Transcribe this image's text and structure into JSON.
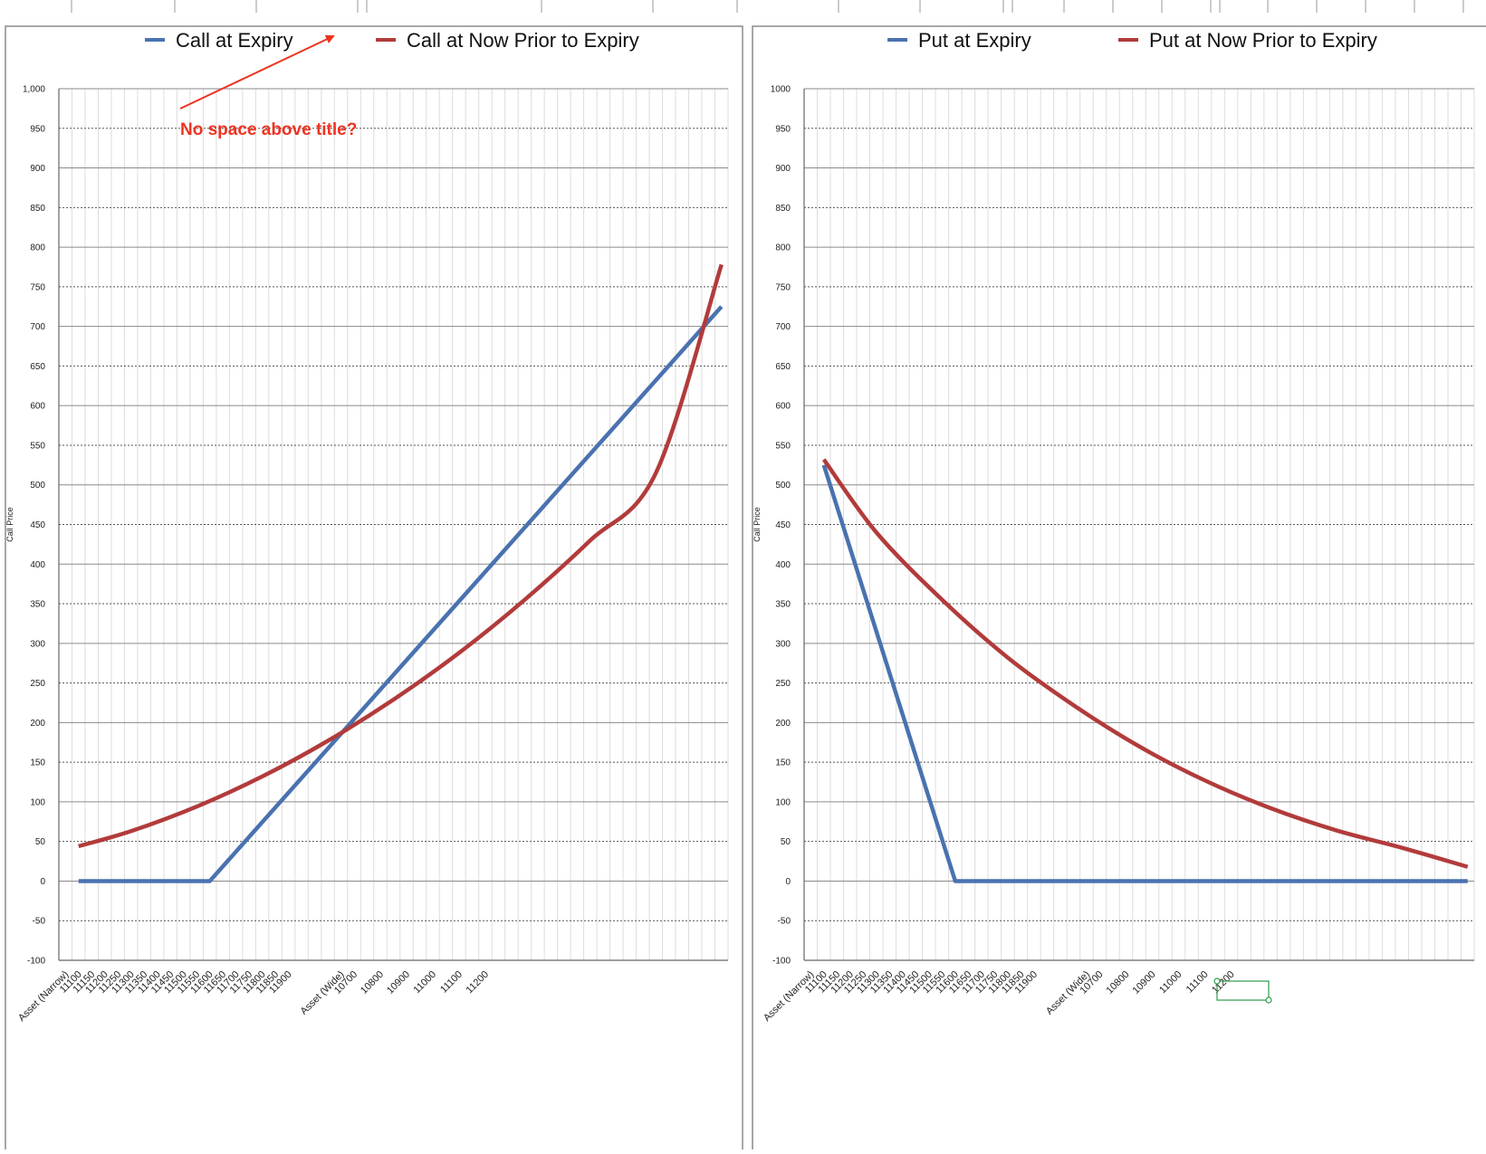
{
  "colors": {
    "series_expiry": "#4a72b0",
    "series_now": "#b23b3b",
    "annotation": "#ee3322",
    "selection": "#2e9a4a",
    "grid_major": "#8a8a8a",
    "grid_minor": "#dddddd",
    "frame": "#8a8a8a"
  },
  "annotation": {
    "text": "No space above title?",
    "shape": "arrow"
  },
  "chart_data": [
    {
      "type": "line",
      "legend_placement": "top",
      "ylabel": "Call Price",
      "ylim": [
        -100,
        1000
      ],
      "ytick_step": 50,
      "ytick_labels": [
        "-100",
        "-50",
        "0",
        "50",
        "100",
        "150",
        "200",
        "250",
        "300",
        "350",
        "400",
        "450",
        "500",
        "550",
        "600",
        "650",
        "700",
        "750",
        "800",
        "850",
        "900",
        "950",
        "1,000"
      ],
      "category_count": 51,
      "category_labels": [
        {
          "index": 0,
          "label": "Asset (Narrow)"
        },
        {
          "index": 1,
          "label": "11100"
        },
        {
          "index": 2,
          "label": "11150"
        },
        {
          "index": 3,
          "label": "11200"
        },
        {
          "index": 4,
          "label": "11250"
        },
        {
          "index": 5,
          "label": "11300"
        },
        {
          "index": 6,
          "label": "11350"
        },
        {
          "index": 7,
          "label": "11400"
        },
        {
          "index": 8,
          "label": "11450"
        },
        {
          "index": 9,
          "label": "11500"
        },
        {
          "index": 10,
          "label": "11550"
        },
        {
          "index": 11,
          "label": "11600"
        },
        {
          "index": 12,
          "label": "11650"
        },
        {
          "index": 13,
          "label": "11700"
        },
        {
          "index": 14,
          "label": "11750"
        },
        {
          "index": 15,
          "label": "11800"
        },
        {
          "index": 16,
          "label": "11850"
        },
        {
          "index": 17,
          "label": "11900"
        },
        {
          "index": 21,
          "label": "Asset (Wide)"
        },
        {
          "index": 22,
          "label": "10700"
        },
        {
          "index": 24,
          "label": "10800"
        },
        {
          "index": 26,
          "label": "10900"
        },
        {
          "index": 28,
          "label": "11000"
        },
        {
          "index": 30,
          "label": "11100"
        },
        {
          "index": 32,
          "label": "11200"
        }
      ],
      "series": [
        {
          "name": "Call at Expiry",
          "color": "#4a72b0",
          "points": [
            [
              1,
              0
            ],
            [
              11,
              0
            ],
            [
              50,
              725
            ]
          ]
        },
        {
          "name": "Call at Now Prior to Expiry",
          "color": "#b23b3b",
          "points": [
            [
              1,
              44
            ],
            [
              5,
              63
            ],
            [
              10,
              94
            ],
            [
              15,
              132
            ],
            [
              20,
              177
            ],
            [
              25,
              229
            ],
            [
              30,
              288
            ],
            [
              35,
              355
            ],
            [
              40,
              430
            ],
            [
              45,
              515
            ],
            [
              50,
              778
            ]
          ]
        }
      ]
    },
    {
      "type": "line",
      "legend_placement": "top",
      "ylabel": "Call Price",
      "ylim": [
        -100,
        1000
      ],
      "ytick_step": 50,
      "ytick_labels": [
        "-100",
        "-50",
        "0",
        "50",
        "100",
        "150",
        "200",
        "250",
        "300",
        "350",
        "400",
        "450",
        "500",
        "550",
        "600",
        "650",
        "700",
        "750",
        "800",
        "850",
        "900",
        "950",
        "1000"
      ],
      "category_count": 51,
      "category_labels": [
        {
          "index": 0,
          "label": "Asset (Narrow)"
        },
        {
          "index": 1,
          "label": "11100"
        },
        {
          "index": 2,
          "label": "11150"
        },
        {
          "index": 3,
          "label": "11200"
        },
        {
          "index": 4,
          "label": "11250"
        },
        {
          "index": 5,
          "label": "11300"
        },
        {
          "index": 6,
          "label": "11350"
        },
        {
          "index": 7,
          "label": "11400"
        },
        {
          "index": 8,
          "label": "11450"
        },
        {
          "index": 9,
          "label": "11500"
        },
        {
          "index": 10,
          "label": "11550"
        },
        {
          "index": 11,
          "label": "11600"
        },
        {
          "index": 12,
          "label": "11650"
        },
        {
          "index": 13,
          "label": "11700"
        },
        {
          "index": 14,
          "label": "11750"
        },
        {
          "index": 15,
          "label": "11800"
        },
        {
          "index": 16,
          "label": "11850"
        },
        {
          "index": 17,
          "label": "11900"
        },
        {
          "index": 21,
          "label": "Asset (Wide)"
        },
        {
          "index": 22,
          "label": "10700"
        },
        {
          "index": 24,
          "label": "10800"
        },
        {
          "index": 26,
          "label": "10900"
        },
        {
          "index": 28,
          "label": "11000"
        },
        {
          "index": 30,
          "label": "11100"
        },
        {
          "index": 32,
          "label": "11200"
        }
      ],
      "series": [
        {
          "name": "Put at Expiry",
          "color": "#4a72b0",
          "points": [
            [
              1,
              525
            ],
            [
              11,
              0
            ],
            [
              50,
              0
            ]
          ]
        },
        {
          "name": "Put at Now Prior to Expiry",
          "color": "#b23b3b",
          "points": [
            [
              1,
              532
            ],
            [
              5,
              440
            ],
            [
              10,
              355
            ],
            [
              15,
              282
            ],
            [
              20,
              222
            ],
            [
              25,
              170
            ],
            [
              30,
              127
            ],
            [
              35,
              92
            ],
            [
              40,
              64
            ],
            [
              45,
              42
            ],
            [
              50,
              18
            ]
          ]
        }
      ]
    }
  ]
}
